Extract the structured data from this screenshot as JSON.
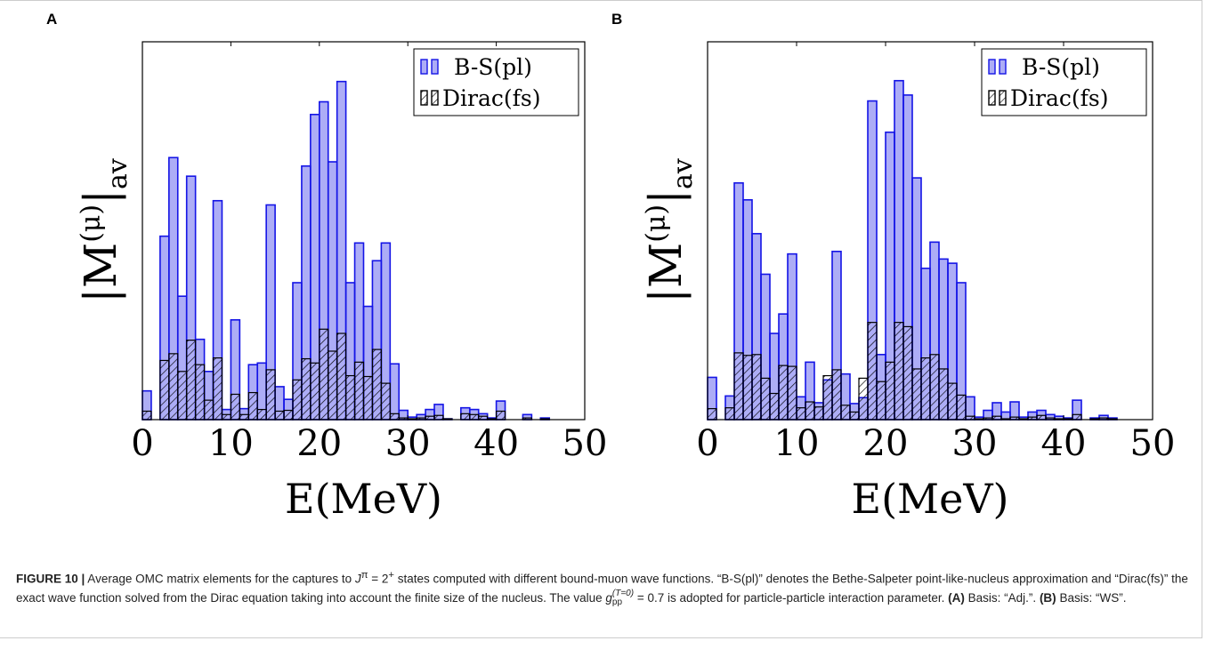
{
  "chart_data": [
    {
      "type": "histogram",
      "panel": "A",
      "xlabel": "E(MeV)",
      "ylabel_parts": [
        "|M",
        "(μ)",
        "|",
        "av"
      ],
      "xlim": [
        0,
        50
      ],
      "xticks": [
        0,
        10,
        20,
        30,
        40,
        50
      ],
      "ylim": [
        0,
        4.47
      ],
      "legend": "top-right",
      "bins": [
        0,
        1,
        2,
        3,
        4,
        5,
        6,
        7,
        8,
        9,
        10,
        11,
        12,
        13,
        14,
        15,
        16,
        17,
        18,
        19,
        20,
        21,
        22,
        23,
        24,
        25,
        26,
        27,
        28,
        29,
        30,
        31,
        32,
        33,
        34,
        35,
        36,
        37,
        38,
        39,
        40,
        41,
        42,
        43,
        44,
        45,
        46
      ],
      "series": [
        {
          "name": "B-S(pl)",
          "color": "#1414e6",
          "hatch": false,
          "values": [
            0.34,
            0,
            2.17,
            3.1,
            1.46,
            2.88,
            0.95,
            0.57,
            2.59,
            0.12,
            1.18,
            0.13,
            0.65,
            0.67,
            2.54,
            0.39,
            0.24,
            1.62,
            3.0,
            3.61,
            3.76,
            3.05,
            4.0,
            1.62,
            2.09,
            1.34,
            1.88,
            2.09,
            0.66,
            0.11,
            0.03,
            0.06,
            0.12,
            0.18,
            0.01,
            0,
            0.14,
            0.12,
            0.07,
            0.02,
            0.22,
            0,
            0,
            0.06,
            0,
            0.02
          ]
        },
        {
          "name": "Dirac(fs)",
          "color": "#000000",
          "hatch": true,
          "values": [
            0.1,
            0,
            0.7,
            0.78,
            0.57,
            0.94,
            0.65,
            0.23,
            0.73,
            0.06,
            0.3,
            0.06,
            0.32,
            0.12,
            0.59,
            0.1,
            0.11,
            0.47,
            0.72,
            0.67,
            1.07,
            0.81,
            1.02,
            0.52,
            0.68,
            0.51,
            0.83,
            0.43,
            0.07,
            0.02,
            0.01,
            0.02,
            0.04,
            0.05,
            0.01,
            0,
            0.07,
            0.06,
            0.04,
            0.01,
            0.1,
            0,
            0,
            0.02,
            0,
            0.01
          ]
        }
      ]
    },
    {
      "type": "histogram",
      "panel": "B",
      "xlabel": "E(MeV)",
      "ylabel_parts": [
        "|M",
        "(μ)",
        "|",
        "av"
      ],
      "xlim": [
        0,
        50
      ],
      "xticks": [
        0,
        10,
        20,
        30,
        40,
        50
      ],
      "ylim": [
        0,
        4.47
      ],
      "legend": "top-right",
      "bins": [
        0,
        1,
        2,
        3,
        4,
        5,
        6,
        7,
        8,
        9,
        10,
        11,
        12,
        13,
        14,
        15,
        16,
        17,
        18,
        19,
        20,
        21,
        22,
        23,
        24,
        25,
        26,
        27,
        28,
        29,
        30,
        31,
        32,
        33,
        34,
        35,
        36,
        37,
        38,
        39,
        40,
        41,
        42,
        43,
        44,
        45,
        46
      ],
      "series": [
        {
          "name": "B-S(pl)",
          "color": "#1414e6",
          "hatch": false,
          "values": [
            0.5,
            0,
            0.28,
            2.8,
            2.6,
            2.2,
            1.72,
            1.02,
            1.25,
            1.96,
            0.27,
            0.68,
            0.2,
            0.47,
            1.99,
            0.54,
            0.19,
            0.26,
            3.77,
            0.77,
            3.4,
            4.01,
            3.84,
            2.86,
            1.79,
            2.1,
            1.9,
            1.85,
            1.62,
            0.27,
            0.03,
            0.11,
            0.2,
            0.09,
            0.21,
            0.03,
            0.09,
            0.11,
            0.06,
            0.04,
            0.02,
            0.23,
            0,
            0.02,
            0.05,
            0.02
          ]
        },
        {
          "name": "Dirac(fs)",
          "color": "#000000",
          "hatch": true,
          "values": [
            0.13,
            0,
            0.14,
            0.79,
            0.76,
            0.77,
            0.49,
            0.31,
            0.64,
            0.63,
            0.14,
            0.21,
            0.15,
            0.52,
            0.59,
            0.17,
            0.09,
            0.49,
            1.15,
            0.45,
            0.68,
            1.15,
            1.1,
            0.6,
            0.73,
            0.77,
            0.6,
            0.43,
            0.29,
            0.04,
            0.01,
            0.02,
            0.04,
            0.01,
            0.03,
            0.01,
            0.03,
            0.05,
            0.02,
            0.01,
            0.01,
            0.06,
            0,
            0.01,
            0.02,
            0.01
          ]
        }
      ]
    }
  ],
  "caption": {
    "parts": [
      "FIGURE 10 |",
      " Average OMC matrix elements for the captures to ",
      "J",
      "π",
      " = 2",
      "+",
      " states computed with different bound-muon wave functions. “B-S(pl)” denotes the Bethe-Salpeter point-like-nucleus approximation and “Dirac(fs)” the exact wave function solved from the Dirac equation taking into account the finite size of the nucleus. The value ",
      "g",
      "pp",
      "(T=0)",
      " = 0.7 is adopted for particle-particle interaction parameter. ",
      "(A)",
      " Basis: “Adj.”. ",
      "(B)",
      " Basis: “WS”."
    ]
  }
}
